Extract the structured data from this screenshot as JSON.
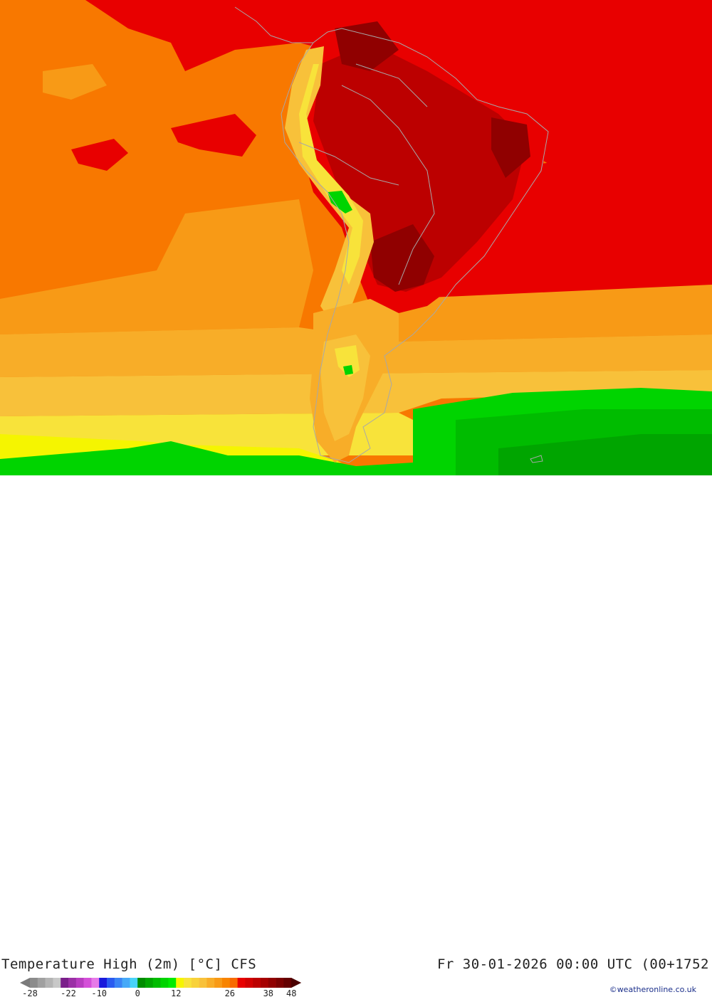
{
  "header": {
    "title": "Temperature High (2m) [°C] CFS",
    "timestamp": "Fr 30-01-2026 00:00 UTC (00+1752"
  },
  "legend": {
    "ticks": [
      "-28",
      "-22",
      "-10",
      "0",
      "12",
      "26",
      "38",
      "48"
    ],
    "swatches": [
      "#8c8c8c",
      "#a0a0a0",
      "#b4b4b4",
      "#c8c8c8",
      "#7a1f8a",
      "#9b2fa6",
      "#b83cc0",
      "#d44fd8",
      "#e77ae8",
      "#1a1adc",
      "#2a5bf0",
      "#3a84f5",
      "#46a9f8",
      "#49d3f9",
      "#008c00",
      "#00a500",
      "#00bc00",
      "#00d400",
      "#00eb00",
      "#f5f500",
      "#f8e33a",
      "#f8d23a",
      "#f8c13a",
      "#f8ad28",
      "#f89a16",
      "#f88400",
      "#f86a00",
      "#e80000",
      "#d20000",
      "#bc0000",
      "#a60000",
      "#900000",
      "#7a0000",
      "#640000"
    ],
    "colors": {
      "arrow_left": "#7a7a7a",
      "arrow_right": "#4a0000"
    }
  },
  "credit": "©weatheronline.co.uk",
  "map": {
    "palette": {
      "ocean_warm": "#f87800",
      "ocean_light": "#f89a16",
      "subtropic": "#f8ad28",
      "midlat": "#f8c13a",
      "cool": "#f8e33a",
      "cold": "#f5f500",
      "green_light": "#00d400",
      "green": "#00bc00",
      "green_dark": "#00a500",
      "hot": "#e80000",
      "hotter": "#bc0000",
      "hottest": "#900000",
      "borders": "#a8a8a8"
    }
  }
}
